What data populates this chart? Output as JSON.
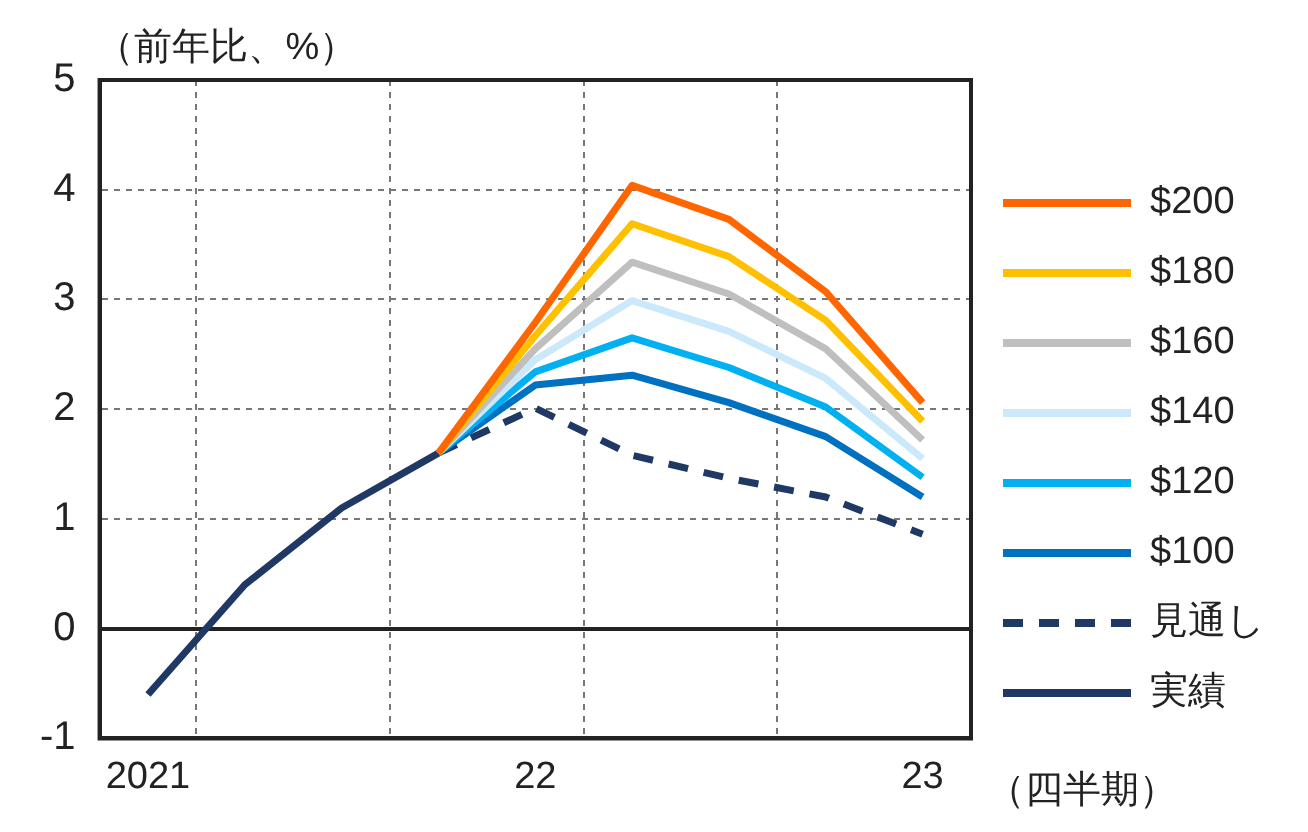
{
  "chart_data": {
    "type": "line",
    "ylabel": "（前年比、%）",
    "xlabel": "（四半期）",
    "categories": [
      "2021",
      null,
      null,
      null,
      "22",
      null,
      null,
      null,
      "23"
    ],
    "series": [
      {
        "name": "$200",
        "color": "#ff6600",
        "values": [
          null,
          null,
          null,
          1.6,
          2.79,
          4.04,
          3.73,
          3.07,
          2.06
        ]
      },
      {
        "name": "$180",
        "color": "#ffc000",
        "values": [
          null,
          null,
          null,
          1.6,
          2.67,
          3.69,
          3.39,
          2.81,
          1.89
        ]
      },
      {
        "name": "$160",
        "color": "#bfbfbf",
        "values": [
          null,
          null,
          null,
          1.6,
          2.55,
          3.34,
          3.05,
          2.55,
          1.72
        ]
      },
      {
        "name": "$140",
        "color": "#cce9fb",
        "values": [
          null,
          null,
          null,
          1.6,
          2.45,
          2.99,
          2.71,
          2.28,
          1.55
        ]
      },
      {
        "name": "$120",
        "color": "#00b0f0",
        "values": [
          null,
          null,
          null,
          1.6,
          2.34,
          2.65,
          2.38,
          2.02,
          1.38
        ]
      },
      {
        "name": "$100",
        "color": "#0070c0",
        "values": [
          null,
          null,
          null,
          1.6,
          2.22,
          2.31,
          2.06,
          1.75,
          1.2
        ]
      },
      {
        "name": "見通し",
        "color": "#1f3864",
        "line_style": "dashed",
        "values": [
          null,
          null,
          null,
          1.6,
          2.01,
          1.58,
          1.37,
          1.2,
          0.86
        ]
      },
      {
        "name": "実績",
        "color": "#1f3864",
        "line_style": "solid",
        "values": [
          -0.6,
          0.4,
          1.1,
          1.6,
          null,
          null,
          null,
          null,
          null
        ]
      }
    ],
    "ylim": [
      -1,
      5
    ],
    "yticks": [
      -1,
      0,
      1,
      2,
      3,
      4,
      5
    ],
    "grid": true,
    "legend": "right",
    "marker": "none",
    "line_style": "solid"
  }
}
